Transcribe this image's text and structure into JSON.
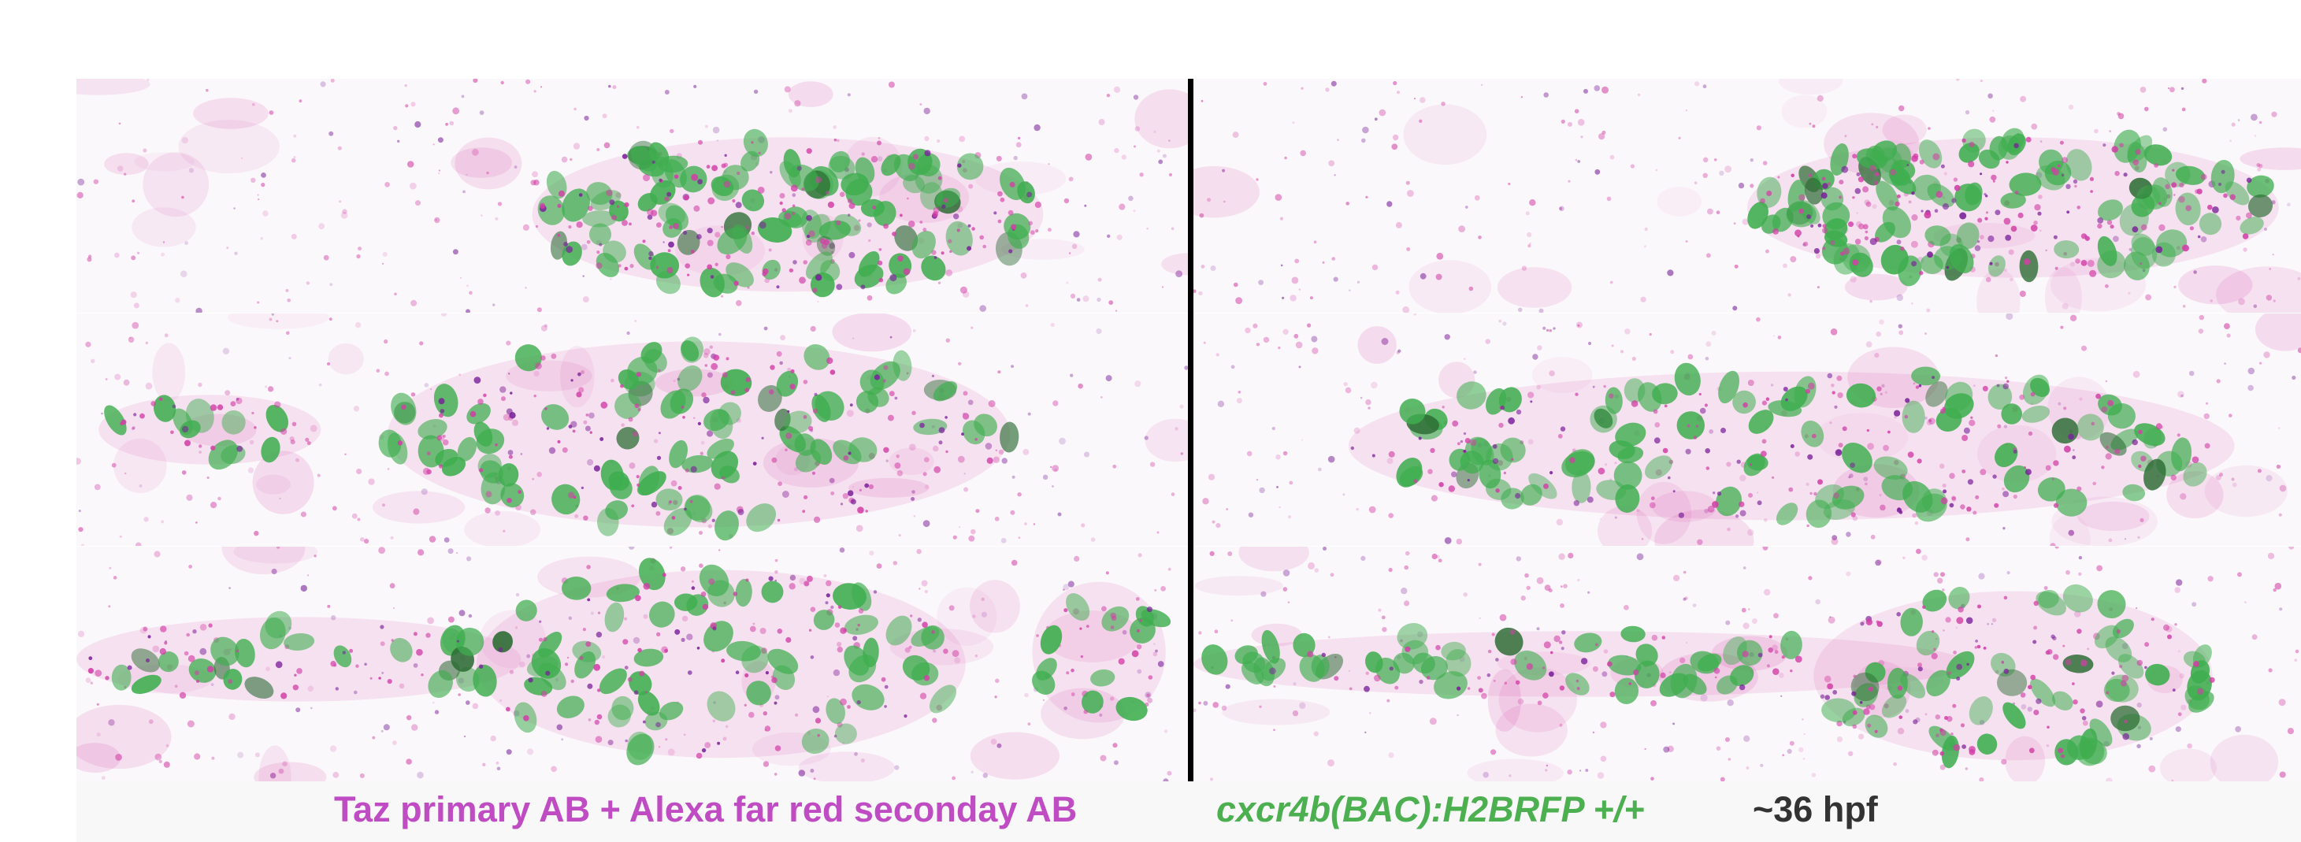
{
  "figure": {
    "panels": [
      {
        "row": 1,
        "column": "left"
      },
      {
        "row": 1,
        "column": "right"
      },
      {
        "row": 2,
        "column": "left"
      },
      {
        "row": 2,
        "column": "right"
      },
      {
        "row": 3,
        "column": "left"
      },
      {
        "row": 3,
        "column": "right"
      }
    ],
    "colors": {
      "nuclei": "#3fae4f",
      "nuclei_dark": "#2d6d35",
      "speckle": "#d23fa6",
      "speckle_dark": "#7a1f9a",
      "background": "#fbf8fb",
      "divider": "#000000"
    }
  },
  "captions": {
    "antibody": {
      "text": "Taz primary AB + Alexa far red seconday AB",
      "color": "#c04cc4"
    },
    "transgene": {
      "text": "cxcr4b(BAC):H2BRFP +/+",
      "color": "#4caf50"
    },
    "stage": {
      "text": "~36 hpf",
      "color": "#333333"
    }
  }
}
